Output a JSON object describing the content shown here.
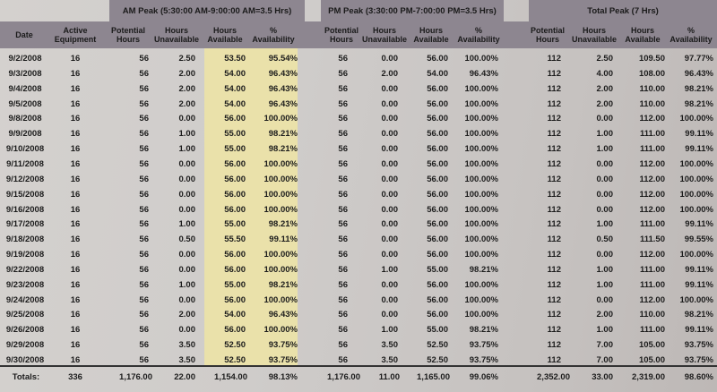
{
  "groups": {
    "am": "AM Peak (5:30:00 AM-9:00:00 AM=3.5 Hrs)",
    "pm": "PM Peak (3:30:00 PM-7:00:00 PM=3.5 Hrs)",
    "total": "Total Peak (7 Hrs)"
  },
  "columns": [
    "Date",
    "Active\nEquipment",
    "Potential\nHours",
    "Hours\nUnavailable",
    "Hours\nAvailable",
    "%\nAvailability",
    "Potential\nHours",
    "Hours\nUnavailable",
    "Hours\nAvailable",
    "%\nAvailability",
    "Potential\nHours",
    "Hours\nUnavailable",
    "Hours\nAvailable",
    "%\nAvailability"
  ],
  "rows": [
    [
      "9/2/2008",
      "16",
      "56",
      "2.50",
      "53.50",
      "95.54%",
      "56",
      "0.00",
      "56.00",
      "100.00%",
      "112",
      "2.50",
      "109.50",
      "97.77%"
    ],
    [
      "9/3/2008",
      "16",
      "56",
      "2.00",
      "54.00",
      "96.43%",
      "56",
      "2.00",
      "54.00",
      "96.43%",
      "112",
      "4.00",
      "108.00",
      "96.43%"
    ],
    [
      "9/4/2008",
      "16",
      "56",
      "2.00",
      "54.00",
      "96.43%",
      "56",
      "0.00",
      "56.00",
      "100.00%",
      "112",
      "2.00",
      "110.00",
      "98.21%"
    ],
    [
      "9/5/2008",
      "16",
      "56",
      "2.00",
      "54.00",
      "96.43%",
      "56",
      "0.00",
      "56.00",
      "100.00%",
      "112",
      "2.00",
      "110.00",
      "98.21%"
    ],
    [
      "9/8/2008",
      "16",
      "56",
      "0.00",
      "56.00",
      "100.00%",
      "56",
      "0.00",
      "56.00",
      "100.00%",
      "112",
      "0.00",
      "112.00",
      "100.00%"
    ],
    [
      "9/9/2008",
      "16",
      "56",
      "1.00",
      "55.00",
      "98.21%",
      "56",
      "0.00",
      "56.00",
      "100.00%",
      "112",
      "1.00",
      "111.00",
      "99.11%"
    ],
    [
      "9/10/2008",
      "16",
      "56",
      "1.00",
      "55.00",
      "98.21%",
      "56",
      "0.00",
      "56.00",
      "100.00%",
      "112",
      "1.00",
      "111.00",
      "99.11%"
    ],
    [
      "9/11/2008",
      "16",
      "56",
      "0.00",
      "56.00",
      "100.00%",
      "56",
      "0.00",
      "56.00",
      "100.00%",
      "112",
      "0.00",
      "112.00",
      "100.00%"
    ],
    [
      "9/12/2008",
      "16",
      "56",
      "0.00",
      "56.00",
      "100.00%",
      "56",
      "0.00",
      "56.00",
      "100.00%",
      "112",
      "0.00",
      "112.00",
      "100.00%"
    ],
    [
      "9/15/2008",
      "16",
      "56",
      "0.00",
      "56.00",
      "100.00%",
      "56",
      "0.00",
      "56.00",
      "100.00%",
      "112",
      "0.00",
      "112.00",
      "100.00%"
    ],
    [
      "9/16/2008",
      "16",
      "56",
      "0.00",
      "56.00",
      "100.00%",
      "56",
      "0.00",
      "56.00",
      "100.00%",
      "112",
      "0.00",
      "112.00",
      "100.00%"
    ],
    [
      "9/17/2008",
      "16",
      "56",
      "1.00",
      "55.00",
      "98.21%",
      "56",
      "0.00",
      "56.00",
      "100.00%",
      "112",
      "1.00",
      "111.00",
      "99.11%"
    ],
    [
      "9/18/2008",
      "16",
      "56",
      "0.50",
      "55.50",
      "99.11%",
      "56",
      "0.00",
      "56.00",
      "100.00%",
      "112",
      "0.50",
      "111.50",
      "99.55%"
    ],
    [
      "9/19/2008",
      "16",
      "56",
      "0.00",
      "56.00",
      "100.00%",
      "56",
      "0.00",
      "56.00",
      "100.00%",
      "112",
      "0.00",
      "112.00",
      "100.00%"
    ],
    [
      "9/22/2008",
      "16",
      "56",
      "0.00",
      "56.00",
      "100.00%",
      "56",
      "1.00",
      "55.00",
      "98.21%",
      "112",
      "1.00",
      "111.00",
      "99.11%"
    ],
    [
      "9/23/2008",
      "16",
      "56",
      "1.00",
      "55.00",
      "98.21%",
      "56",
      "0.00",
      "56.00",
      "100.00%",
      "112",
      "1.00",
      "111.00",
      "99.11%"
    ],
    [
      "9/24/2008",
      "16",
      "56",
      "0.00",
      "56.00",
      "100.00%",
      "56",
      "0.00",
      "56.00",
      "100.00%",
      "112",
      "0.00",
      "112.00",
      "100.00%"
    ],
    [
      "9/25/2008",
      "16",
      "56",
      "2.00",
      "54.00",
      "96.43%",
      "56",
      "0.00",
      "56.00",
      "100.00%",
      "112",
      "2.00",
      "110.00",
      "98.21%"
    ],
    [
      "9/26/2008",
      "16",
      "56",
      "0.00",
      "56.00",
      "100.00%",
      "56",
      "1.00",
      "55.00",
      "98.21%",
      "112",
      "1.00",
      "111.00",
      "99.11%"
    ],
    [
      "9/29/2008",
      "16",
      "56",
      "3.50",
      "52.50",
      "93.75%",
      "56",
      "3.50",
      "52.50",
      "93.75%",
      "112",
      "7.00",
      "105.00",
      "93.75%"
    ],
    [
      "9/30/2008",
      "16",
      "56",
      "3.50",
      "52.50",
      "93.75%",
      "56",
      "3.50",
      "52.50",
      "93.75%",
      "112",
      "7.00",
      "105.00",
      "93.75%"
    ]
  ],
  "totals": [
    "Totals:",
    "336",
    "1,176.00",
    "22.00",
    "1,154.00",
    "98.13%",
    "1,176.00",
    "11.00",
    "1,165.00",
    "99.06%",
    "2,352.00",
    "33.00",
    "2,319.00",
    "98.60%"
  ]
}
